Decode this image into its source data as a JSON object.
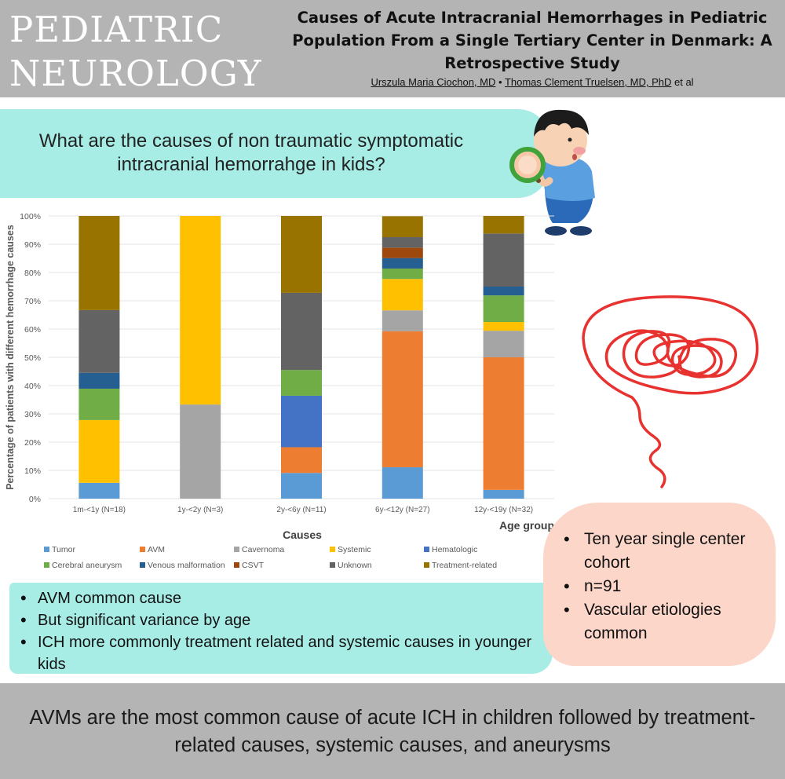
{
  "header": {
    "journal_line1": "PEDIATRIC",
    "journal_line2": "NEUROLOGY",
    "title": "Causes of Acute Intracranial Hemorrhages in Pediatric Population From a Single Tertiary Center in Denmark: A Retrospective Study",
    "author1": "Urszula Maria Ciochon, MD",
    "separator": "•",
    "author2": "Thomas Clement Truelsen, MD, PhD",
    "etal": "et al"
  },
  "question": "What are the causes of non traumatic symptomatic intracranial hemorrahge in kids?",
  "chart_data": {
    "type": "bar",
    "stacked": true,
    "categories": [
      "1m-<1y (N=18)",
      "1y-<2y (N=3)",
      "2y-<6y (N=11)",
      "6y-<12y (N=27)",
      "12y-<19y (N=32)"
    ],
    "ylabel": "Percentage of patients with different hemorrhage causes",
    "xlabel": "Age group",
    "legend_title": "Causes",
    "ylim": [
      0,
      100
    ],
    "y_ticks": [
      "0%",
      "10%",
      "20%",
      "30%",
      "40%",
      "50%",
      "60%",
      "70%",
      "80%",
      "90%",
      "100%"
    ],
    "grid": true,
    "legend_position": "bottom",
    "series": [
      {
        "name": "Tumor",
        "color": "#5b9bd5",
        "values": [
          5.6,
          0,
          9.1,
          11.1,
          3.1
        ]
      },
      {
        "name": "AVM",
        "color": "#ed7d31",
        "values": [
          0,
          0,
          9.1,
          48.1,
          46.9
        ]
      },
      {
        "name": "Cavernoma",
        "color": "#a5a5a5",
        "values": [
          0,
          33.3,
          0,
          7.4,
          9.4
        ]
      },
      {
        "name": "Systemic",
        "color": "#ffc000",
        "values": [
          22.2,
          66.7,
          0,
          11.1,
          3.1
        ]
      },
      {
        "name": "Hematologic",
        "color": "#4472c4",
        "values": [
          0,
          0,
          18.2,
          0,
          0
        ]
      },
      {
        "name": "Cerebral aneurysm",
        "color": "#70ad47",
        "values": [
          11.1,
          0,
          9.1,
          3.7,
          9.4
        ]
      },
      {
        "name": "Venous malformation",
        "color": "#255e91",
        "values": [
          5.6,
          0,
          0,
          3.7,
          3.1
        ]
      },
      {
        "name": "CSVT",
        "color": "#9e480e",
        "values": [
          0,
          0,
          0,
          3.7,
          0
        ]
      },
      {
        "name": "Unknown",
        "color": "#636363",
        "values": [
          22.2,
          0,
          27.3,
          3.7,
          18.8
        ]
      },
      {
        "name": "Treatment-related",
        "color": "#997300",
        "values": [
          33.3,
          0,
          27.3,
          7.4,
          6.2
        ]
      }
    ]
  },
  "bullets_left": [
    "AVM common cause",
    "But significant variance by age",
    "ICH more commonly treatment related and systemic causes in younger kids"
  ],
  "bullets_right": [
    "Ten year single center cohort",
    "n=91",
    "Vascular etiologies common"
  ],
  "footer": "AVMs are the most common cause of acute ICH in children followed by treatment-related causes, systemic causes, and aneurysms",
  "colors": {
    "header_bg": "#b4b4b4",
    "teal_box": "#a7ede6",
    "peach_box": "#fbd6c9",
    "scribble": "#e8322f"
  }
}
